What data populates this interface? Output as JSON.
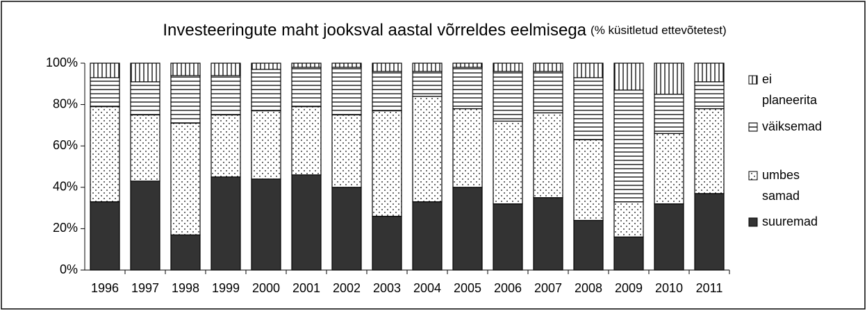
{
  "chart_data": {
    "type": "stacked_bar",
    "title": "Investeeringute maht jooksval aastal võrreldes eelmisega",
    "subtitle": "(% küsitletud ettevõtetest)",
    "categories": [
      "1996",
      "1997",
      "1998",
      "1999",
      "2000",
      "2001",
      "2002",
      "2003",
      "2004",
      "2005",
      "2006",
      "2007",
      "2008",
      "2009",
      "2010",
      "2011"
    ],
    "series": [
      {
        "name": "suuremad",
        "color": "#333333",
        "pattern": "solid",
        "values": [
          33,
          43,
          17,
          45,
          44,
          46,
          40,
          26,
          33,
          40,
          32,
          35,
          24,
          16,
          32,
          37
        ]
      },
      {
        "name": "umbes samad",
        "color": "#000000",
        "pattern": "dots",
        "values": [
          46,
          32,
          54,
          30,
          33,
          33,
          35,
          51,
          51,
          38,
          40,
          41,
          39,
          17,
          34,
          41
        ]
      },
      {
        "name": "väiksemad",
        "color": "#000000",
        "pattern": "hlines",
        "values": [
          14,
          16,
          23,
          19,
          20,
          19,
          23,
          19,
          12,
          20,
          24,
          20,
          30,
          54,
          19,
          13
        ]
      },
      {
        "name": "ei planeerita",
        "color": "#000000",
        "pattern": "vlines",
        "values": [
          7,
          9,
          6,
          6,
          3,
          2,
          2,
          4,
          4,
          2,
          4,
          4,
          7,
          13,
          15,
          9
        ]
      }
    ],
    "ylim": [
      0,
      100
    ],
    "yticks": [
      {
        "value": 0,
        "label": "0%"
      },
      {
        "value": 20,
        "label": "20%"
      },
      {
        "value": 40,
        "label": "40%"
      },
      {
        "value": 60,
        "label": "60%"
      },
      {
        "value": 80,
        "label": "80%"
      },
      {
        "value": 100,
        "label": "100%"
      }
    ],
    "grid": false,
    "legend": "right"
  }
}
